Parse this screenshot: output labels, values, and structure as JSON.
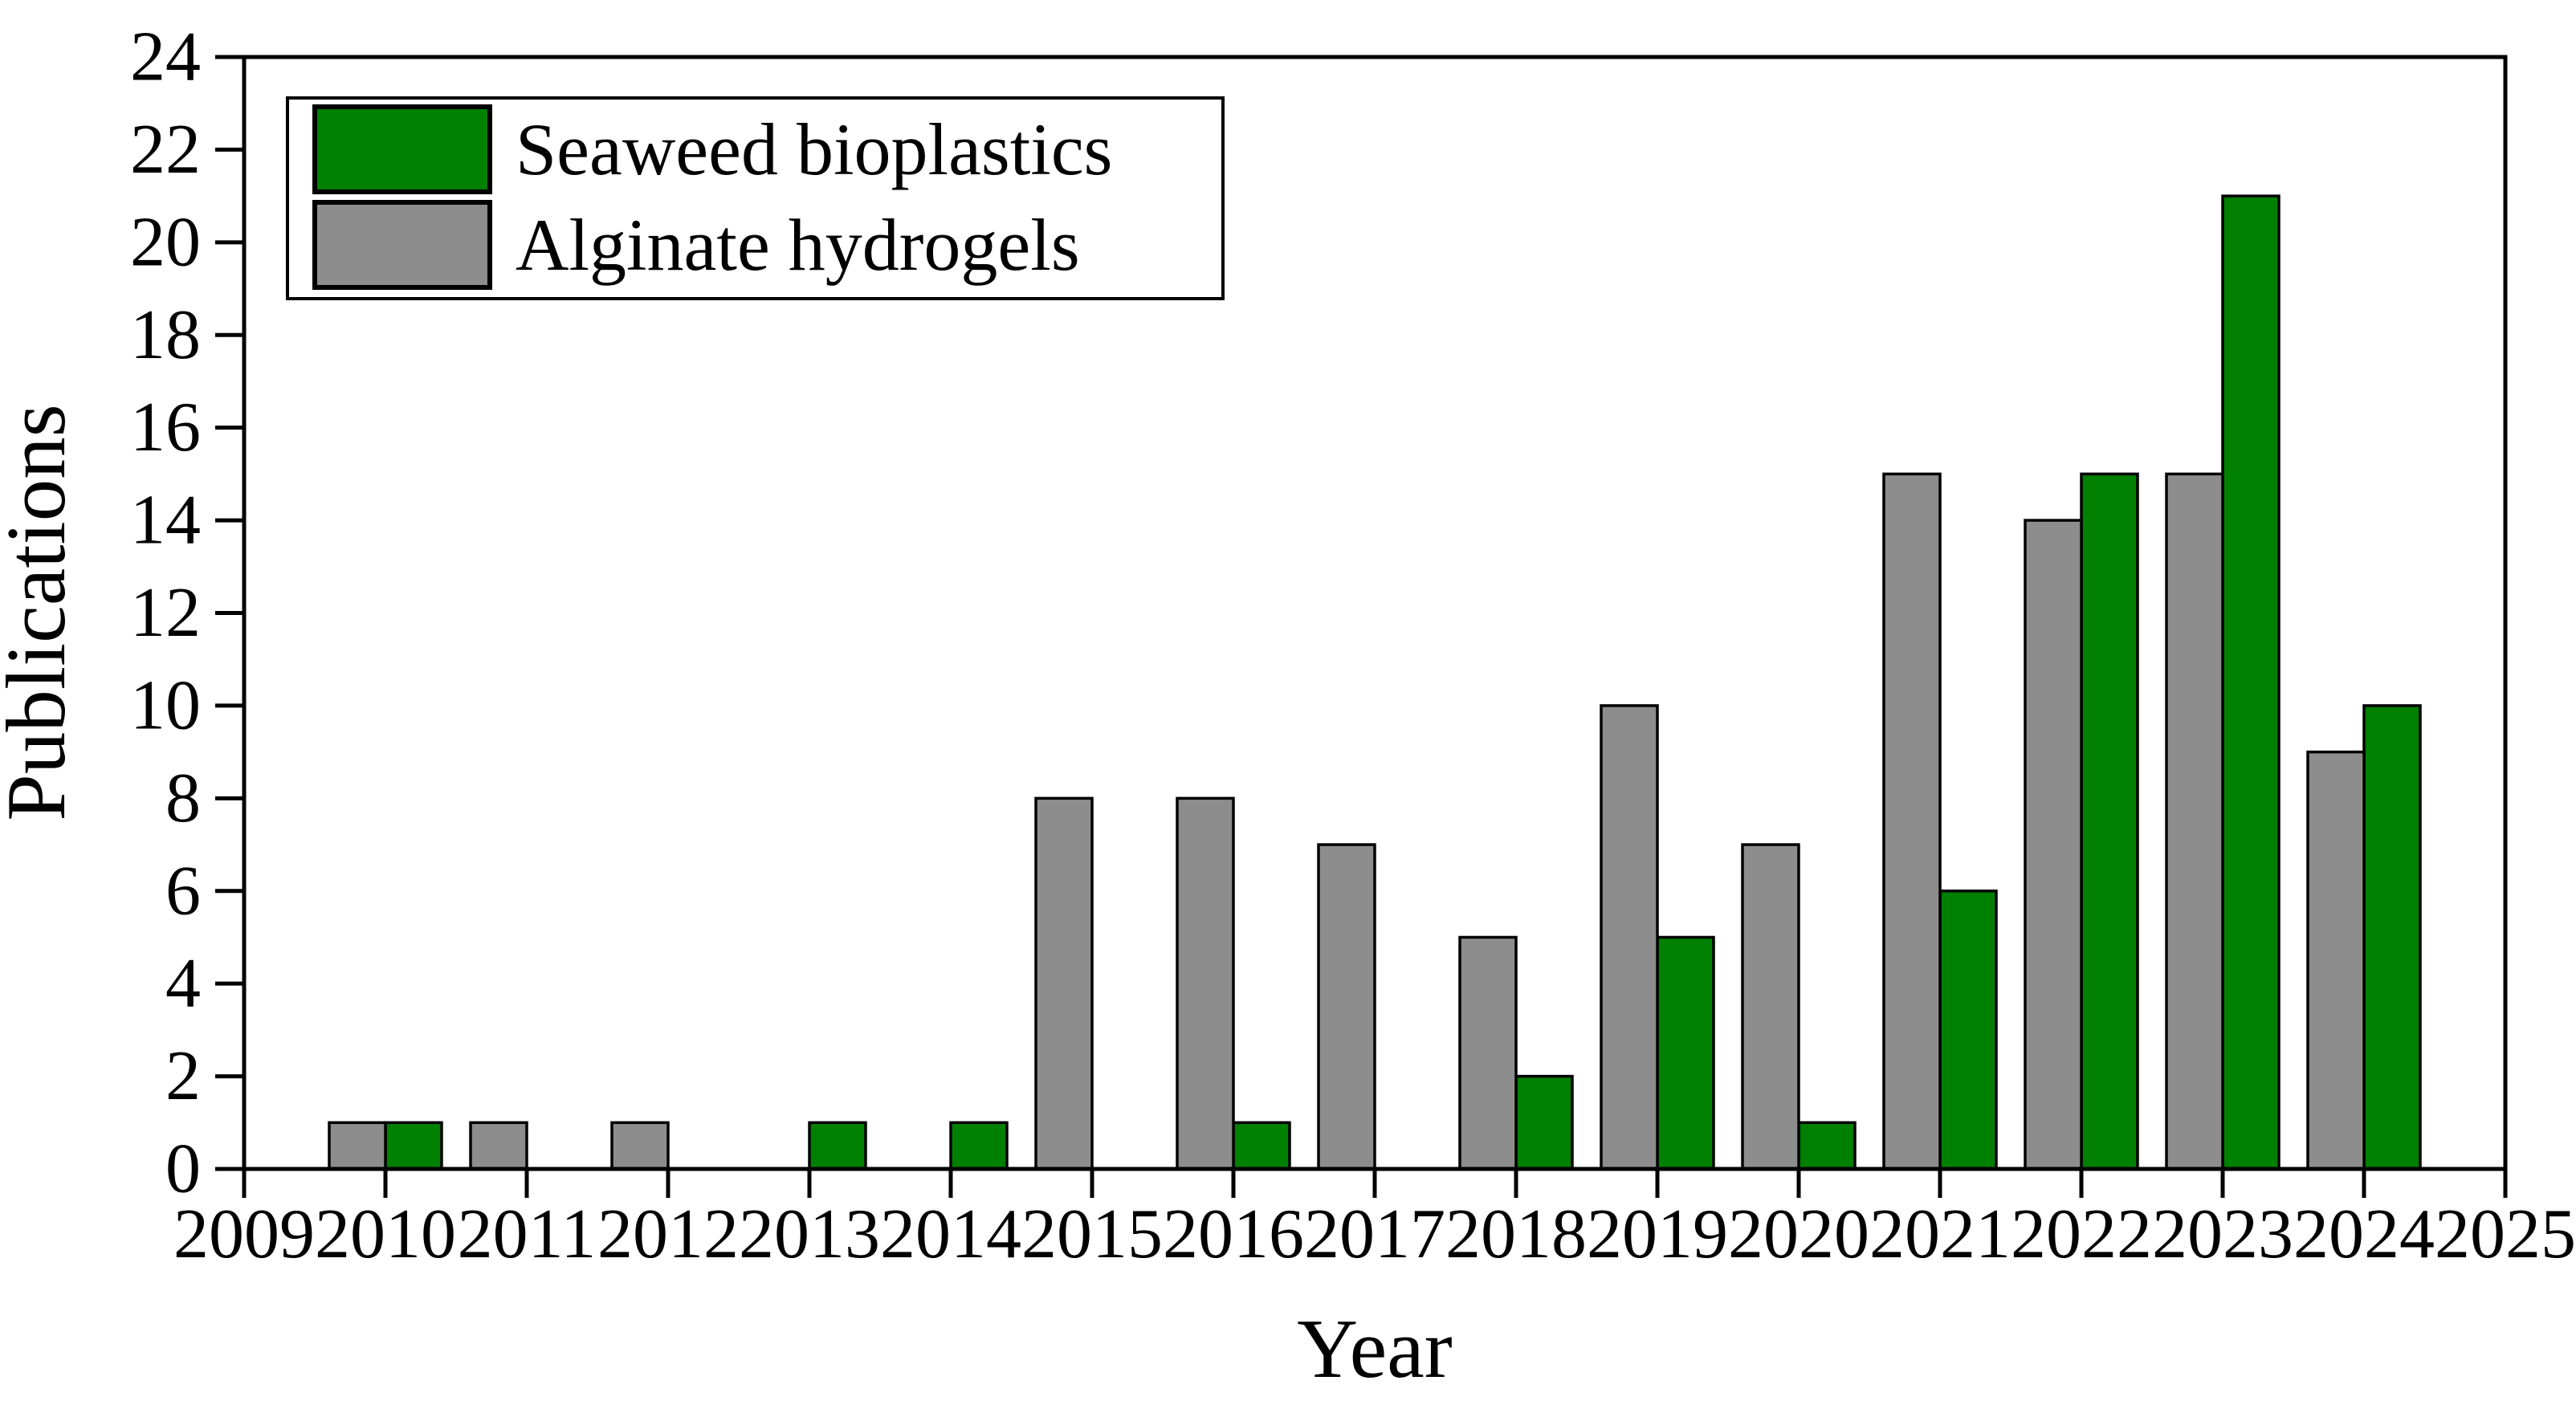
{
  "chart_data": {
    "type": "bar",
    "title": "",
    "xlabel": "Year",
    "ylabel": "Publications",
    "categories": [
      "2009",
      "2010",
      "2011",
      "2012",
      "2013",
      "2014",
      "2015",
      "2016",
      "2017",
      "2018",
      "2019",
      "2020",
      "2021",
      "2022",
      "2023",
      "2024",
      "2025"
    ],
    "series": [
      {
        "name": "Seaweed bioplastics",
        "color": "#008000",
        "position": "right",
        "values": [
          0,
          1,
          0,
          0,
          1,
          1,
          0,
          1,
          0,
          2,
          5,
          1,
          6,
          15,
          21,
          10,
          0
        ]
      },
      {
        "name": "Alginate hydrogels",
        "color": "#8d8d8d",
        "position": "left",
        "values": [
          0,
          1,
          1,
          1,
          0,
          0,
          8,
          8,
          7,
          5,
          10,
          7,
          15,
          14,
          15,
          9,
          0
        ]
      }
    ],
    "ylim": [
      0,
      24
    ],
    "ytick_step": 2,
    "yticks": [
      0,
      2,
      4,
      6,
      8,
      10,
      12,
      14,
      16,
      18,
      20,
      22,
      24
    ],
    "grid": false,
    "legend_position": "top-left",
    "bar_outline_color": "#000000",
    "axis_color": "#000000",
    "background_color": "#ffffff"
  }
}
